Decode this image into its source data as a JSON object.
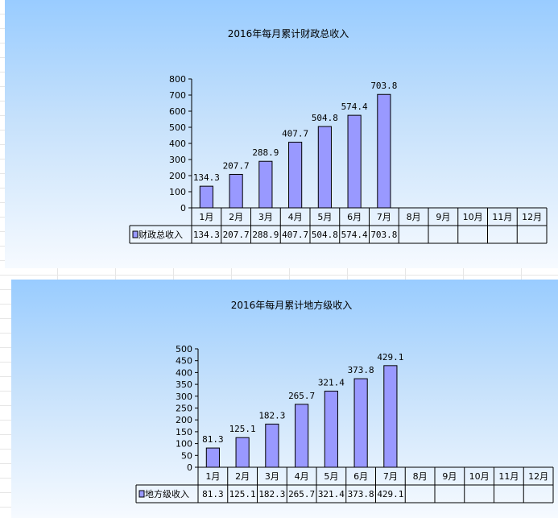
{
  "chart_data": [
    {
      "type": "bar",
      "title": "2016年每月累计财政总收入",
      "categories": [
        "1月",
        "2月",
        "3月",
        "4月",
        "5月",
        "6月",
        "7月",
        "8月",
        "9月",
        "10月",
        "11月",
        "12月"
      ],
      "series": [
        {
          "name": "财政总收入",
          "values": [
            134.3,
            207.7,
            288.9,
            407.7,
            504.8,
            574.4,
            703.8,
            null,
            null,
            null,
            null,
            null
          ]
        }
      ],
      "data_labels": [
        "134.3",
        "207.7",
        "288.9",
        "407.7",
        "504.8",
        "574.4",
        "703.8",
        "",
        "",
        "",
        "",
        ""
      ],
      "ylim": [
        0,
        800
      ],
      "yticks": [
        0,
        100,
        200,
        300,
        400,
        500,
        600,
        700,
        800
      ],
      "legend": "data-table",
      "bar_color": "#9999ff",
      "bar_border": "#000000"
    },
    {
      "type": "bar",
      "title": "2016年每月累计地方级收入",
      "categories": [
        "1月",
        "2月",
        "3月",
        "4月",
        "5月",
        "6月",
        "7月",
        "8月",
        "9月",
        "10月",
        "11月",
        "12月"
      ],
      "series": [
        {
          "name": "地方级收入",
          "values": [
            81.3,
            125.1,
            182.3,
            265.7,
            321.4,
            373.8,
            429.1,
            null,
            null,
            null,
            null,
            null
          ]
        }
      ],
      "data_labels": [
        "81.3",
        "125.1",
        "182.3",
        "265.7",
        "321.4",
        "373.8",
        "429.1",
        "",
        "",
        "",
        "",
        ""
      ],
      "ylim": [
        0,
        500
      ],
      "yticks": [
        0,
        50,
        100,
        150,
        200,
        250,
        300,
        350,
        400,
        450,
        500
      ],
      "legend": "data-table",
      "bar_color": "#9999ff",
      "bar_border": "#000000"
    }
  ]
}
